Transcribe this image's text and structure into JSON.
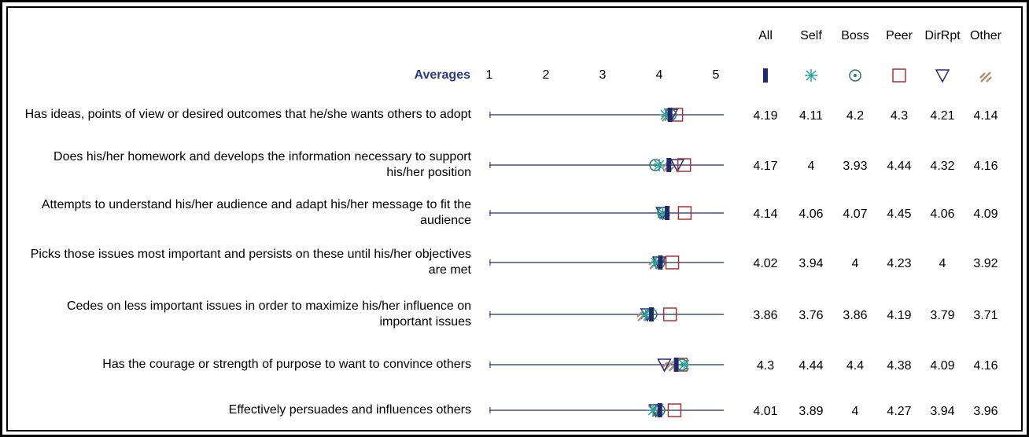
{
  "chart_data": {
    "type": "dot",
    "scale_label": "Averages",
    "xlim": [
      1,
      5
    ],
    "xticks": [
      1,
      2,
      3,
      4,
      5
    ],
    "categories": [
      "Has ideas, points of view or desired outcomes that he/she wants others to adopt",
      "Does his/her homework and develops the information necessary to support his/her position",
      "Attempts to understand his/her audience and adapt his/her message to fit the audience",
      "Picks those issues most important and persists on these until his/her objectives are met",
      "Cedes on less important issues in order to maximize his/her influence on important issues",
      "Has the courage or strength of purpose to want to convince others",
      "Effectively persuades and influences others"
    ],
    "series": [
      {
        "name": "All",
        "color": "#1f2a6b",
        "values": [
          4.19,
          4.17,
          4.14,
          4.02,
          3.86,
          4.3,
          4.01
        ]
      },
      {
        "name": "Self",
        "color": "#2aa0a0",
        "values": [
          4.11,
          4,
          4.06,
          3.94,
          3.76,
          4.44,
          3.89
        ]
      },
      {
        "name": "Boss",
        "color": "#2a7a6a",
        "values": [
          4.2,
          3.93,
          4.07,
          4,
          3.86,
          4.4,
          4
        ]
      },
      {
        "name": "Peer",
        "color": "#b03030",
        "values": [
          4.3,
          4.44,
          4.45,
          4.23,
          4.19,
          4.38,
          4.27
        ]
      },
      {
        "name": "DirRpt",
        "color": "#2a2a80",
        "values": [
          4.21,
          4.32,
          4.06,
          4,
          3.79,
          4.09,
          3.94
        ]
      },
      {
        "name": "Other",
        "color": "#b09070",
        "values": [
          4.14,
          4.16,
          4.09,
          3.92,
          3.71,
          4.16,
          3.96
        ]
      }
    ]
  }
}
